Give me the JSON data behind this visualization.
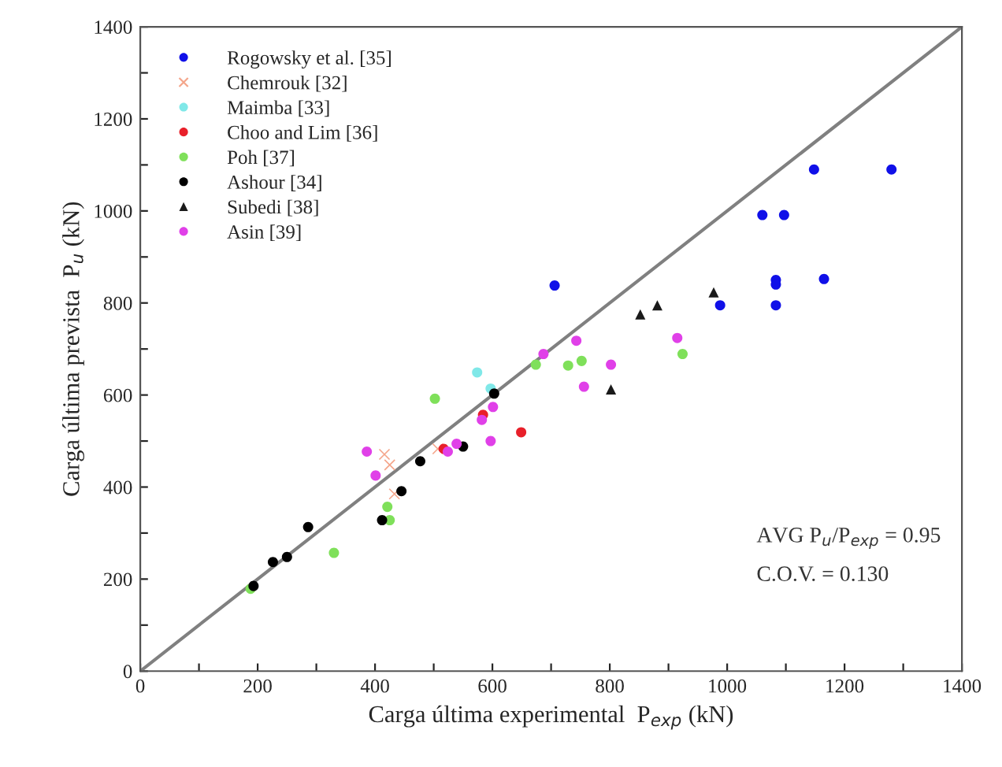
{
  "chart_data": {
    "type": "scatter",
    "xlabel": "Carga última experimental  P$_{exp}$ (kN)",
    "ylabel": "Carga última prevista  P$_{u}$ (kN)",
    "xlim": [
      0,
      1400
    ],
    "ylim": [
      0,
      1400
    ],
    "xticks": [
      0,
      {
        "value": 100,
        "label": null
      },
      200,
      {
        "value": 300,
        "label": null
      },
      400,
      {
        "value": 500,
        "label": null
      },
      600,
      {
        "value": 700,
        "label": null
      },
      800,
      {
        "value": 900,
        "label": null
      },
      1000,
      {
        "value": 1100,
        "label": null
      },
      1200,
      {
        "value": 1300,
        "label": null
      },
      1400
    ],
    "yticks": [
      0,
      {
        "value": 100,
        "label": null
      },
      200,
      {
        "value": 300,
        "label": null
      },
      400,
      {
        "value": 500,
        "label": null
      },
      600,
      {
        "value": 700,
        "label": null
      },
      800,
      {
        "value": 900,
        "label": null
      },
      1000,
      {
        "value": 1100,
        "label": null
      },
      1200,
      {
        "value": 1300,
        "label": null
      },
      1400
    ],
    "grid": false,
    "legend": "top left",
    "annotations": [
      "AVG P$_{u}$/P$_{exp}$ = 0.95",
      "C.O.V. = 0.130"
    ],
    "series": [
      {
        "name": "Rogowsky et al. [35]",
        "color": "#1010e8",
        "marker": "circle",
        "x": [
          706,
          1060,
          1097,
          988,
          1083,
          1083,
          1083,
          1165,
          1148,
          1280
        ],
        "values": [
          838,
          991,
          991,
          795,
          850,
          840,
          795,
          852,
          1090,
          1090
        ]
      },
      {
        "name": "Chemrouk [32]",
        "color": "#f4a58a",
        "marker": "cross",
        "x": [
          416,
          425,
          433,
          507
        ],
        "values": [
          471,
          448,
          385,
          483
        ]
      },
      {
        "name": "Maimba [33]",
        "color": "#80e8e8",
        "marker": "circle",
        "x": [
          574,
          597
        ],
        "values": [
          649,
          614
        ]
      },
      {
        "name": "Choo and Lim [36]",
        "color": "#e8202a",
        "marker": "circle",
        "x": [
          584,
          649,
          517
        ],
        "values": [
          557,
          519,
          483
        ]
      },
      {
        "name": "Poh [37]",
        "color": "#7fe05a",
        "marker": "circle",
        "x": [
          188,
          330,
          425,
          421,
          502,
          674,
          729,
          752,
          924
        ],
        "values": [
          179,
          257,
          328,
          357,
          592,
          666,
          664,
          674,
          689
        ]
      },
      {
        "name": "Ashour [34]",
        "color": "#000000",
        "marker": "circle",
        "x": [
          193,
          226,
          250,
          286,
          412,
          445,
          477,
          550,
          603
        ],
        "values": [
          185,
          237,
          248,
          313,
          328,
          391,
          456,
          488,
          603
        ]
      },
      {
        "name": "Subedi [38]",
        "color": "#1a1a1a",
        "marker": "triangle",
        "x": [
          852,
          881,
          977,
          802
        ],
        "values": [
          775,
          795,
          823,
          612
        ]
      },
      {
        "name": "Asin [39]",
        "color": "#e040e8",
        "marker": "circle",
        "x": [
          386,
          401,
          524,
          539,
          582,
          597,
          601,
          687,
          743,
          756,
          802,
          915
        ],
        "values": [
          477,
          425,
          477,
          494,
          546,
          500,
          574,
          689,
          718,
          618,
          666,
          724
        ]
      },
      {
        "type": "line",
        "color": "#808080",
        "marker": "none",
        "line_style": "solid",
        "x": [
          0,
          1400
        ],
        "values": [
          0,
          1400
        ]
      }
    ]
  }
}
